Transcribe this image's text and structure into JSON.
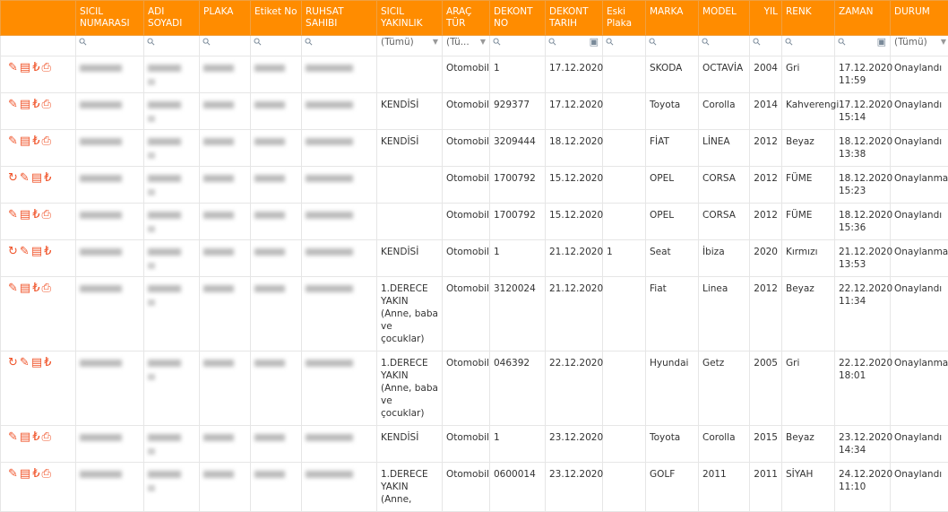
{
  "headers": [
    "",
    "SICIL NUMARASI",
    "ADI SOYADI",
    "PLAKA",
    "Etiket No",
    "RUHSAT SAHIBI",
    "SICIL YAKINLIK",
    "ARAÇ TÜR",
    "DEKONT NO",
    "DEKONT TARIH",
    "Eski Plaka",
    "MARKA",
    "MODEL",
    "YIL",
    "RENK",
    "ZAMAN",
    "DURUM"
  ],
  "filters": {
    "yakinlik": "(Tümü)",
    "arac": "(Tü...",
    "durum": "(Tümü)"
  },
  "colors": {
    "header": "#ff8c00",
    "icon": "#f0542a"
  },
  "rows": [
    {
      "actions": [
        "edit",
        "images",
        "lira",
        "print"
      ],
      "yakinlik": "",
      "arac": "Otomobil",
      "dekont_no": "1",
      "tarih": "17.12.2020",
      "eski": "",
      "marka": "SKODA",
      "model": "OCTAVİA",
      "yil": "2004",
      "renk": "Gri",
      "zaman": "17.12.2020 11:59",
      "durum": "Onaylandı"
    },
    {
      "actions": [
        "edit",
        "images",
        "lira",
        "print"
      ],
      "yakinlik": "KENDİSİ",
      "arac": "Otomobil",
      "dekont_no": "929377",
      "tarih": "17.12.2020",
      "eski": "",
      "marka": "Toyota",
      "model": "Corolla",
      "yil": "2014",
      "renk": "Kahverengi",
      "zaman": "17.12.2020 15:14",
      "durum": "Onaylandı"
    },
    {
      "actions": [
        "edit",
        "images",
        "lira",
        "print"
      ],
      "yakinlik": "KENDİSİ",
      "arac": "Otomobil",
      "dekont_no": "3209444",
      "tarih": "18.12.2020",
      "eski": "",
      "marka": "FİAT",
      "model": "LİNEA",
      "yil": "2012",
      "renk": "Beyaz",
      "zaman": "18.12.2020 13:38",
      "durum": "Onaylandı"
    },
    {
      "actions": [
        "refresh",
        "edit",
        "images",
        "lira"
      ],
      "yakinlik": "",
      "arac": "Otomobil",
      "dekont_no": "1700792",
      "tarih": "15.12.2020",
      "eski": "",
      "marka": "OPEL",
      "model": "CORSA",
      "yil": "2012",
      "renk": "FÜME",
      "zaman": "18.12.2020 15:23",
      "durum": "Onaylanmadı"
    },
    {
      "actions": [
        "edit",
        "images",
        "lira",
        "print"
      ],
      "yakinlik": "",
      "arac": "Otomobil",
      "dekont_no": "1700792",
      "tarih": "15.12.2020",
      "eski": "",
      "marka": "OPEL",
      "model": "CORSA",
      "yil": "2012",
      "renk": "FÜME",
      "zaman": "18.12.2020 15:36",
      "durum": "Onaylandı"
    },
    {
      "actions": [
        "refresh",
        "edit",
        "images",
        "lira"
      ],
      "yakinlik": "KENDİSİ",
      "arac": "Otomobil",
      "dekont_no": "1",
      "tarih": "21.12.2020",
      "eski": "1",
      "marka": "Seat",
      "model": "İbiza",
      "yil": "2020",
      "renk": "Kırmızı",
      "zaman": "21.12.2020 13:53",
      "durum": "Onaylanmadı"
    },
    {
      "actions": [
        "edit",
        "images",
        "lira",
        "print"
      ],
      "yakinlik": "1.DERECE YAKIN (Anne, baba ve çocuklar)",
      "arac": "Otomobil",
      "dekont_no": "3120024",
      "tarih": "21.12.2020",
      "eski": "",
      "marka": "Fiat",
      "model": "Linea",
      "yil": "2012",
      "renk": "Beyaz",
      "zaman": "22.12.2020 11:34",
      "durum": "Onaylandı"
    },
    {
      "actions": [
        "refresh",
        "edit",
        "images",
        "lira"
      ],
      "yakinlik": "1.DERECE YAKIN (Anne, baba ve çocuklar)",
      "arac": "Otomobil",
      "dekont_no": "046392",
      "tarih": "22.12.2020",
      "eski": "",
      "marka": "Hyundai",
      "model": "Getz",
      "yil": "2005",
      "renk": "Gri",
      "zaman": "22.12.2020 18:01",
      "durum": "Onaylanmadı"
    },
    {
      "actions": [
        "edit",
        "images",
        "lira",
        "print"
      ],
      "yakinlik": "KENDİSİ",
      "arac": "Otomobil",
      "dekont_no": "1",
      "tarih": "23.12.2020",
      "eski": "",
      "marka": "Toyota",
      "model": "Corolla",
      "yil": "2015",
      "renk": "Beyaz",
      "zaman": "23.12.2020 14:34",
      "durum": "Onaylandı"
    },
    {
      "actions": [
        "edit",
        "images",
        "lira",
        "print"
      ],
      "yakinlik": "1.DERECE YAKIN (Anne,",
      "arac": "Otomobil",
      "dekont_no": "0600014",
      "tarih": "23.12.2020",
      "eski": "",
      "marka": "GOLF",
      "model": "2011",
      "yil": "2011",
      "renk": "SİYAH",
      "zaman": "24.12.2020 11:10",
      "durum": "Onaylandı"
    }
  ]
}
